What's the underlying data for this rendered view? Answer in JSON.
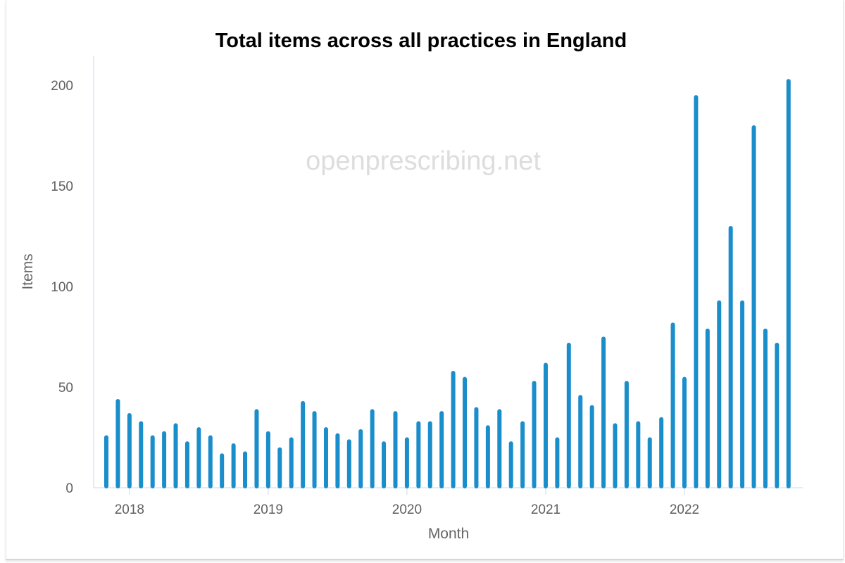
{
  "watermark": "openprescribing.net",
  "chart_data": {
    "type": "bar",
    "title": "Total items across all practices in England",
    "xlabel": "Month",
    "ylabel": "Items",
    "ylim": [
      0,
      215
    ],
    "yticks": [
      0,
      50,
      100,
      150,
      200
    ],
    "xticks": [
      "2018",
      "2019",
      "2020",
      "2021",
      "2022"
    ],
    "grid": false,
    "legend": "none",
    "color": "#1a8dcb",
    "categories": [
      "2017-11",
      "2017-12",
      "2018-01",
      "2018-02",
      "2018-03",
      "2018-04",
      "2018-05",
      "2018-06",
      "2018-07",
      "2018-08",
      "2018-09",
      "2018-10",
      "2018-11",
      "2018-12",
      "2019-01",
      "2019-02",
      "2019-03",
      "2019-04",
      "2019-05",
      "2019-06",
      "2019-07",
      "2019-08",
      "2019-09",
      "2019-10",
      "2019-11",
      "2019-12",
      "2020-01",
      "2020-02",
      "2020-03",
      "2020-04",
      "2020-05",
      "2020-06",
      "2020-07",
      "2020-08",
      "2020-09",
      "2020-10",
      "2020-11",
      "2020-12",
      "2021-01",
      "2021-02",
      "2021-03",
      "2021-04",
      "2021-05",
      "2021-06",
      "2021-07",
      "2021-08",
      "2021-09",
      "2021-10",
      "2021-11",
      "2021-12",
      "2022-01",
      "2022-02",
      "2022-03",
      "2022-04",
      "2022-05",
      "2022-06",
      "2022-07",
      "2022-08",
      "2022-09",
      "2022-10"
    ],
    "values": [
      25,
      43,
      36,
      32,
      25,
      27,
      31,
      22,
      29,
      25,
      16,
      21,
      17,
      38,
      27,
      19,
      24,
      42,
      37,
      29,
      26,
      23,
      28,
      38,
      22,
      37,
      24,
      32,
      32,
      37,
      57,
      54,
      39,
      30,
      38,
      22,
      32,
      52,
      61,
      24,
      71,
      45,
      40,
      74,
      31,
      52,
      32,
      24,
      34,
      81,
      54,
      194,
      78,
      92,
      129,
      92,
      179,
      78,
      71,
      202
    ]
  }
}
